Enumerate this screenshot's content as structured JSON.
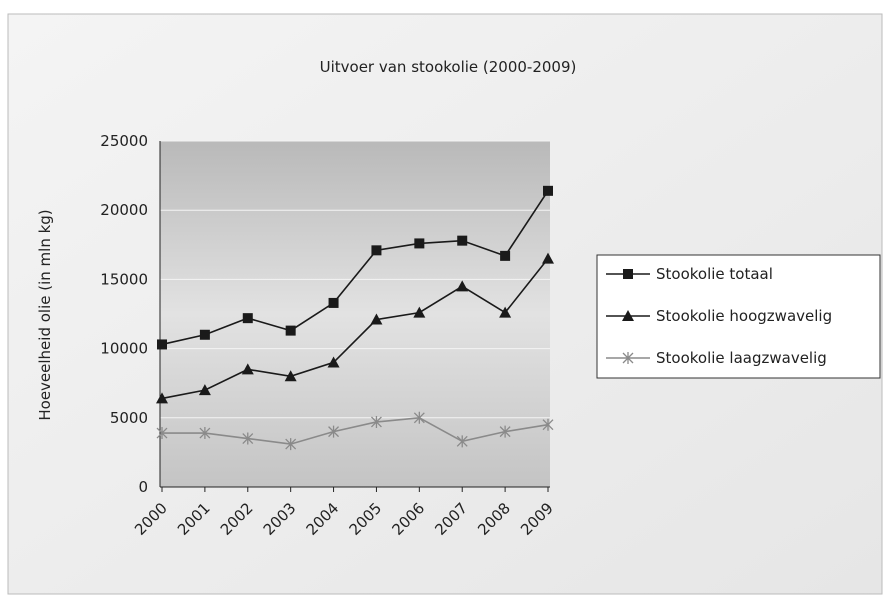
{
  "chart_data": {
    "type": "line",
    "title": "Uitvoer van stookolie (2000-2009)",
    "y_label": "Hoeveelheid olie (in mln kg)",
    "categories": [
      "2000",
      "2001",
      "2002",
      "2003",
      "2004",
      "2005",
      "2006",
      "2007",
      "2008",
      "2009"
    ],
    "series": [
      {
        "name": "Stookolie totaal",
        "color": "#1a1a1a",
        "marker": "square",
        "values": [
          10300,
          11000,
          12200,
          11300,
          13300,
          17100,
          17600,
          17800,
          16700,
          21400
        ]
      },
      {
        "name": "Stookolie hoogzwavelig",
        "color": "#1a1a1a",
        "marker": "triangle",
        "values": [
          6400,
          7000,
          8500,
          8000,
          9000,
          12100,
          12600,
          14500,
          12600,
          16500
        ]
      },
      {
        "name": "Stookolie laagzwavelig",
        "color": "#8a8a8a",
        "marker": "star",
        "values": [
          3900,
          3900,
          3500,
          3100,
          4000,
          4700,
          5000,
          3300,
          4000,
          4500
        ]
      }
    ],
    "ylim": [
      0,
      25000
    ],
    "yticks": [
      0,
      5000,
      10000,
      15000,
      20000,
      25000
    ],
    "grid": true,
    "legend": "right"
  }
}
